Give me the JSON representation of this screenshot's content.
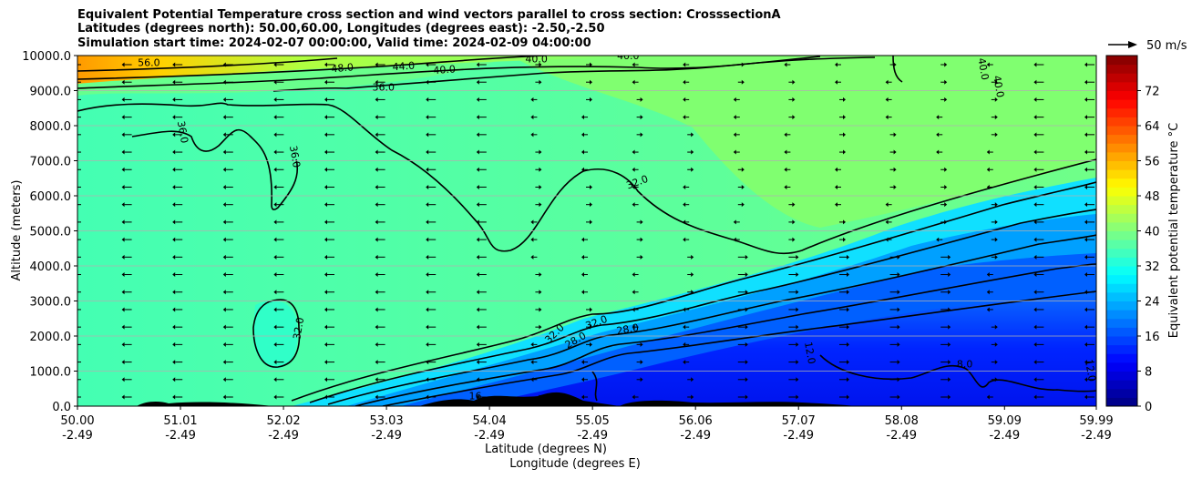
{
  "chart_data": {
    "type": "heatmap",
    "subtype": "filled contour cross section with wind vectors",
    "title": [
      "Equivalent Potential Temperature cross section and wind vectors parallel to cross section: CrosssectionA",
      "Latitudes (degrees north): 50.00,60.00, Longitudes (degrees east): -2.50,-2.50",
      "Simulation start time: 2024-02-07 00:00:00, Valid time: 2024-02-09 04:00:00"
    ],
    "xlabel": [
      "Latitude (degrees N)",
      "Longitude (degrees E)"
    ],
    "ylabel": "Altitude (meters)",
    "x_ticks": [
      {
        "lat": "50.00",
        "lon": "-2.49",
        "v": 50.0
      },
      {
        "lat": "51.01",
        "lon": "-2.49",
        "v": 51.01
      },
      {
        "lat": "52.02",
        "lon": "-2.49",
        "v": 52.02
      },
      {
        "lat": "53.03",
        "lon": "-2.49",
        "v": 53.03
      },
      {
        "lat": "54.04",
        "lon": "-2.49",
        "v": 54.04
      },
      {
        "lat": "55.05",
        "lon": "-2.49",
        "v": 55.05
      },
      {
        "lat": "56.06",
        "lon": "-2.49",
        "v": 56.06
      },
      {
        "lat": "57.07",
        "lon": "-2.49",
        "v": 57.07
      },
      {
        "lat": "58.08",
        "lon": "-2.49",
        "v": 58.08
      },
      {
        "lat": "59.09",
        "lon": "-2.49",
        "v": 59.09
      },
      {
        "lat": "59.99",
        "lon": "-2.49",
        "v": 59.99
      }
    ],
    "xlim": [
      50.0,
      59.99
    ],
    "y_ticks": [
      "0.0",
      "1000.0",
      "2000.0",
      "3000.0",
      "4000.0",
      "5000.0",
      "6000.0",
      "7000.0",
      "8000.0",
      "9000.0",
      "10000.0"
    ],
    "ylim": [
      0,
      10000
    ],
    "grid": "horizontal",
    "colorbar": {
      "label": "Equivalent potential temperature $^\\circ$C",
      "label_text": "Equivalent potential temperature °C",
      "range": [
        0,
        80
      ],
      "ticks": [
        "0",
        "8",
        "16",
        "24",
        "32",
        "40",
        "48",
        "56",
        "64",
        "72"
      ],
      "colormap": "jet"
    },
    "quiver_key": {
      "label": "50 m/s",
      "speed": 50
    },
    "contour_lines": [
      {
        "level": "8.0",
        "shape": "low-level contour near 58.5-60 N, about 600-900 m"
      },
      {
        "level": "12.0",
        "shape": "from 56.5 N rising to about 1300 m"
      },
      {
        "level": "16.0",
        "shape": "near surface around 54 N"
      },
      {
        "level": "20.0",
        "shape": "sloping from 52.3 N to 60 N"
      },
      {
        "level": "24.0",
        "shape": "sloping from 52.3 N to 60 N"
      },
      {
        "level": "28.0",
        "shape": "sloping from 52.3 N to 60 N"
      },
      {
        "level": "32.0",
        "shape": "closed cell near 52 N at 2000-3000 m and sloping frontal line"
      },
      {
        "level": "36.0",
        "shape": "mid-level contour 2000-8500 m"
      },
      {
        "level": "40.0",
        "shape": "upper-level contour near 9500-10000 m"
      },
      {
        "level": "44.0",
        "shape": "near model top at 53-54 N"
      },
      {
        "level": "48.0",
        "shape": "near model top at 52-53 N"
      }
    ],
    "field_description": {
      "upper_levels": "40-44 C (green) above about 7000 m north of 55 N",
      "mid_levels": "32-36 C (cyan-green) over most of the domain",
      "frontal_zone": "sharp gradient sloping from 52.3 N near the surface to about 7000 m at 60 N",
      "low_levels_north": "8-16 C (blue) below the frontal surface north of 54.5 N",
      "top_left": "48-60 C (yellow-orange) near 10000 m at 50-52 N"
    },
    "wind_vectors": {
      "description": "mostly weak; southward arrows in west and low-level northward arrows near 56-58 N"
    },
    "contour_label_texts": [
      "56.0",
      "48.0",
      "44.0",
      "40.0",
      "40.0",
      "40.0",
      "40.0",
      "40.0",
      "36.0",
      "36.0",
      "36.0",
      "32.0",
      "32.0",
      "32.0",
      "32.0",
      "28.0",
      "28.0",
      "12.0",
      "8.0",
      "16",
      "12.0"
    ]
  }
}
